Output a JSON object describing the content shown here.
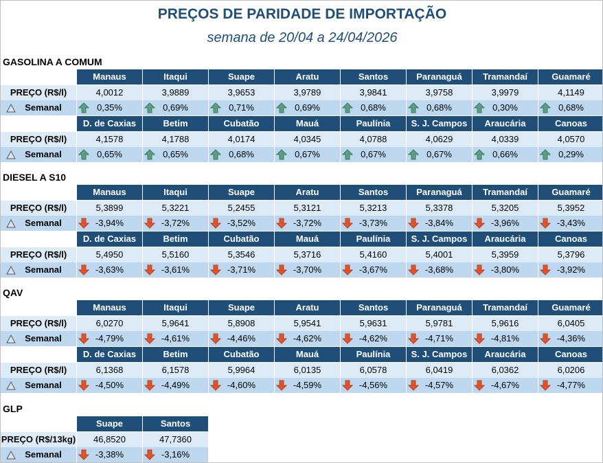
{
  "header": {
    "title": "PREÇOS DE PARIDADE DE IMPORTAÇÃO",
    "subtitle": "semana de 20/04 a 24/04/2026"
  },
  "sections": [
    {
      "name": "GASOLINA A COMUM",
      "blocks": [
        {
          "ports": [
            "Manaus",
            "Itaqui",
            "Suape",
            "Aratu",
            "Santos",
            "Paranaguá",
            "Tramandaí",
            "Guamaré"
          ],
          "price_label": "PREÇO (R$/l)",
          "prices": [
            "4,0012",
            "3,9889",
            "3,9653",
            "3,9789",
            "3,9841",
            "3,9758",
            "3,9979",
            "4,1149"
          ],
          "change_label": "Semanal",
          "changes": [
            "0,35%",
            "0,69%",
            "0,71%",
            "0,69%",
            "0,68%",
            "0,68%",
            "0,30%",
            "0,68%"
          ]
        },
        {
          "ports": [
            "D. de Caxias",
            "Betim",
            "Cubatão",
            "Mauá",
            "Paulínia",
            "S. J. Campos",
            "Araucária",
            "Canoas"
          ],
          "price_label": "PREÇO (R$/l)",
          "prices": [
            "4,1578",
            "4,1788",
            "4,0174",
            "4,0345",
            "4,0788",
            "4,0629",
            "4,0339",
            "4,0570"
          ],
          "change_label": "Semanal",
          "changes": [
            "0,65%",
            "0,65%",
            "0,68%",
            "0,67%",
            "0,67%",
            "0,67%",
            "0,66%",
            "0,29%"
          ]
        }
      ]
    },
    {
      "name": "DIESEL A S10",
      "blocks": [
        {
          "ports": [
            "Manaus",
            "Itaqui",
            "Suape",
            "Aratu",
            "Santos",
            "Paranaguá",
            "Tramandaí",
            "Guamaré"
          ],
          "price_label": "PREÇO (R$/l)",
          "prices": [
            "5,3899",
            "5,3221",
            "5,2455",
            "5,3121",
            "5,3213",
            "5,3378",
            "5,3205",
            "5,3952"
          ],
          "change_label": "Semanal",
          "changes": [
            "-3,94%",
            "-3,72%",
            "-3,52%",
            "-3,72%",
            "-3,73%",
            "-3,84%",
            "-3,96%",
            "-3,43%"
          ]
        },
        {
          "ports": [
            "D. de Caxias",
            "Betim",
            "Cubatão",
            "Mauá",
            "Paulínia",
            "S. J. Campos",
            "Araucária",
            "Canoas"
          ],
          "price_label": "PREÇO (R$/l)",
          "prices": [
            "5,4950",
            "5,5160",
            "5,3546",
            "5,3716",
            "5,4160",
            "5,4001",
            "5,3959",
            "5,3796"
          ],
          "change_label": "Semanal",
          "changes": [
            "-3,63%",
            "-3,61%",
            "-3,71%",
            "-3,70%",
            "-3,67%",
            "-3,68%",
            "-3,80%",
            "-3,92%"
          ]
        }
      ]
    },
    {
      "name": "QAV",
      "blocks": [
        {
          "ports": [
            "Manaus",
            "Itaqui",
            "Suape",
            "Aratu",
            "Santos",
            "Paranaguá",
            "Tramandaí",
            "Guamaré"
          ],
          "price_label": "PREÇO (R$/l)",
          "prices": [
            "6,0270",
            "5,9641",
            "5,8908",
            "5,9541",
            "5,9631",
            "5,9781",
            "5,9616",
            "6,0405"
          ],
          "change_label": "Semanal",
          "changes": [
            "-4,79%",
            "-4,61%",
            "-4,46%",
            "-4,62%",
            "-4,62%",
            "-4,71%",
            "-4,81%",
            "-4,36%"
          ]
        },
        {
          "ports": [
            "D. de Caxias",
            "Betim",
            "Cubatão",
            "Mauá",
            "Paulínia",
            "S. J. Campos",
            "Araucária",
            "Canoas"
          ],
          "price_label": "PREÇO (R$/l)",
          "prices": [
            "6,1368",
            "6,1578",
            "5,9964",
            "6,0135",
            "6,0578",
            "6,0419",
            "6,0362",
            "6,0206"
          ],
          "change_label": "Semanal",
          "changes": [
            "-4,50%",
            "-4,49%",
            "-4,60%",
            "-4,59%",
            "-4,56%",
            "-4,57%",
            "-4,67%",
            "-4,77%"
          ]
        }
      ]
    },
    {
      "name": "GLP",
      "blocks": [
        {
          "ports": [
            "Suape",
            "Santos"
          ],
          "price_label": "PREÇO (R$/13kg)",
          "prices": [
            "46,8520",
            "47,7360"
          ],
          "change_label": "Semanal",
          "changes": [
            "-3,38%",
            "-3,16%"
          ]
        }
      ]
    }
  ]
}
